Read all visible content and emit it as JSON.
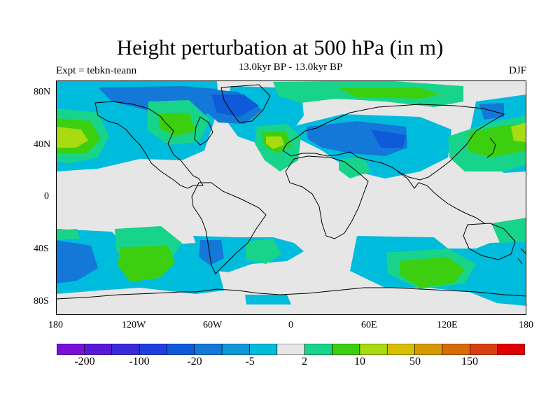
{
  "title": "Height perturbation at 500 hPa (in m)",
  "subtitle": "13.0kyr BP - 13.0kyr BP",
  "experiment_label": "Expt = tebkn-teann",
  "season_label": "DJF",
  "axes": {
    "x_ticks": [
      "180",
      "120W",
      "60W",
      "0",
      "60E",
      "120E",
      "180"
    ],
    "y_ticks": [
      "80N",
      "40N",
      "0",
      "40S",
      "80S"
    ]
  },
  "colorbar": {
    "labels": [
      "-200",
      "-100",
      "-20",
      "-5",
      "2",
      "10",
      "50",
      "150"
    ],
    "colors": [
      "#7a0fd8",
      "#5a18d8",
      "#3a2ad8",
      "#1f3ee0",
      "#0e5ad8",
      "#1478d8",
      "#0f98d8",
      "#00bcdc",
      "#e6e6e6",
      "#18d48a",
      "#3ccf10",
      "#a8dc10",
      "#d8c000",
      "#d89800",
      "#d86c00",
      "#d83e10",
      "#e00000"
    ]
  },
  "colors": {
    "ocean_land_bg": "#e6e6e6",
    "coastline": "#000000"
  }
}
